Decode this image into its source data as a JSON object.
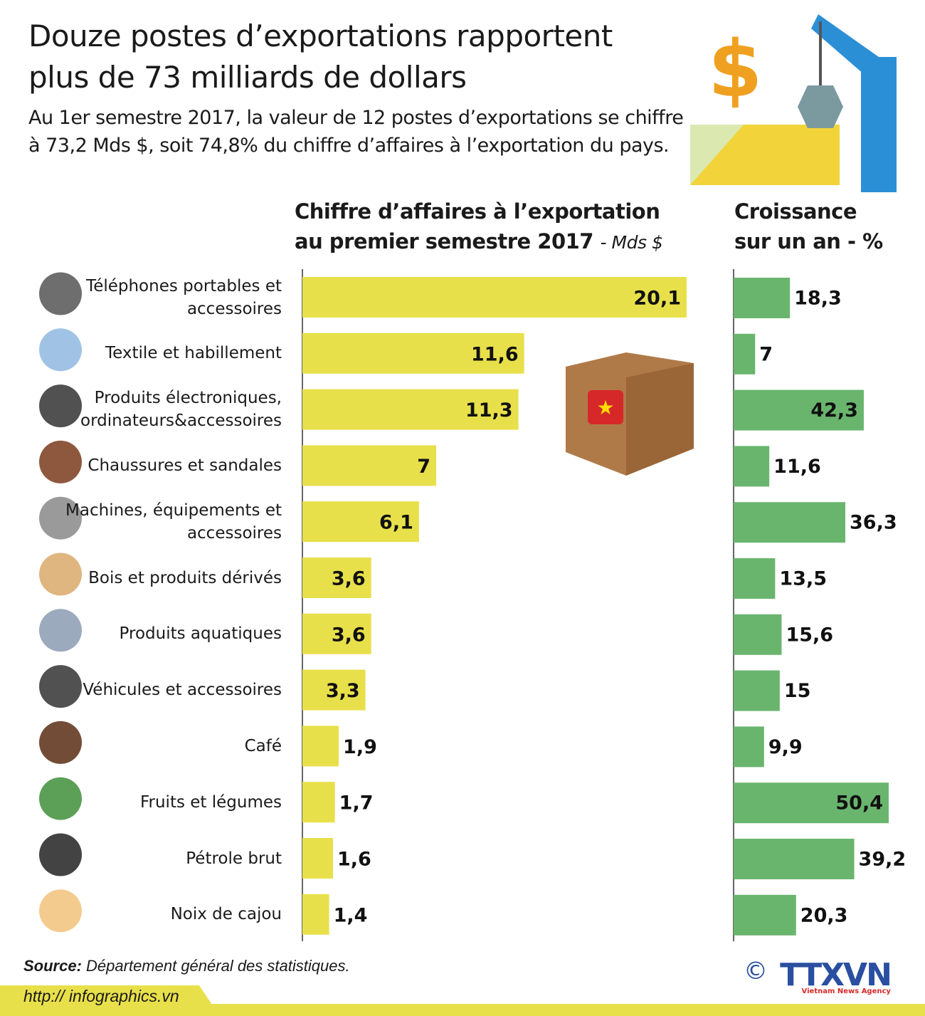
{
  "header": {
    "title": "Douze postes d’exportations rapportent plus de 73 milliards de dollars",
    "subtitle": "Au 1er semestre 2017, la valeur de 12 postes d’exportations se chiffre à 73,2 Mds $, soit 74,8% du chiffre d’affaires à l’exportation du pays."
  },
  "chart_data": [
    {
      "type": "bar",
      "orientation": "horizontal",
      "title": "Chiffre d’affaires à l’exportation au premier semestre 2017",
      "unit": "- Mds $",
      "color": "#e8e04a",
      "categories": [
        "Téléphones portables et accessoires",
        "Textile et habillement",
        "Produits électroniques, ordinateurs&accessoires",
        "Chaussures et sandales",
        "Machines, équipements et accessoires",
        "Bois et produits dérivés",
        "Produits aquatiques",
        "Véhicules et accessoires",
        "Café",
        "Fruits et légumes",
        "Pétrole brut",
        "Noix de cajou"
      ],
      "values": [
        20.1,
        11.6,
        11.3,
        7,
        6.1,
        3.6,
        3.6,
        3.3,
        1.9,
        1.7,
        1.6,
        1.4
      ],
      "labels": [
        "20,1",
        "11,6",
        "11,3",
        "7",
        "6,1",
        "3,6",
        "3,6",
        "3,3",
        "1,9",
        "1,7",
        "1,6",
        "1,4"
      ]
    },
    {
      "type": "bar",
      "orientation": "horizontal",
      "title": "Croissance sur un an - %",
      "color": "#6ab56e",
      "values": [
        18.3,
        7,
        42.3,
        11.6,
        36.3,
        13.5,
        15.6,
        15,
        9.9,
        50.4,
        39.2,
        20.3
      ],
      "labels": [
        "18,3",
        "7",
        "42,3",
        "11,6",
        "36,3",
        "13,5",
        "15,6",
        "15",
        "9,9",
        "50,4",
        "39,2",
        "20,3"
      ]
    }
  ],
  "icons": [
    "phone-icon",
    "shirt-icon",
    "computer-icon",
    "shoes-icon",
    "gear-icon",
    "wood-icon",
    "fish-icon",
    "tire-icon",
    "coffee-icon",
    "cabbage-icon",
    "oil-drop-icon",
    "cashew-icon"
  ],
  "footer": {
    "source_label": "Source:",
    "source_text": " Département général des statistiques.",
    "url": "http:// infographics.vn",
    "logo_text": "TTXVN",
    "logo_sub": "Vietnam News Agency",
    "copyright": "©"
  }
}
